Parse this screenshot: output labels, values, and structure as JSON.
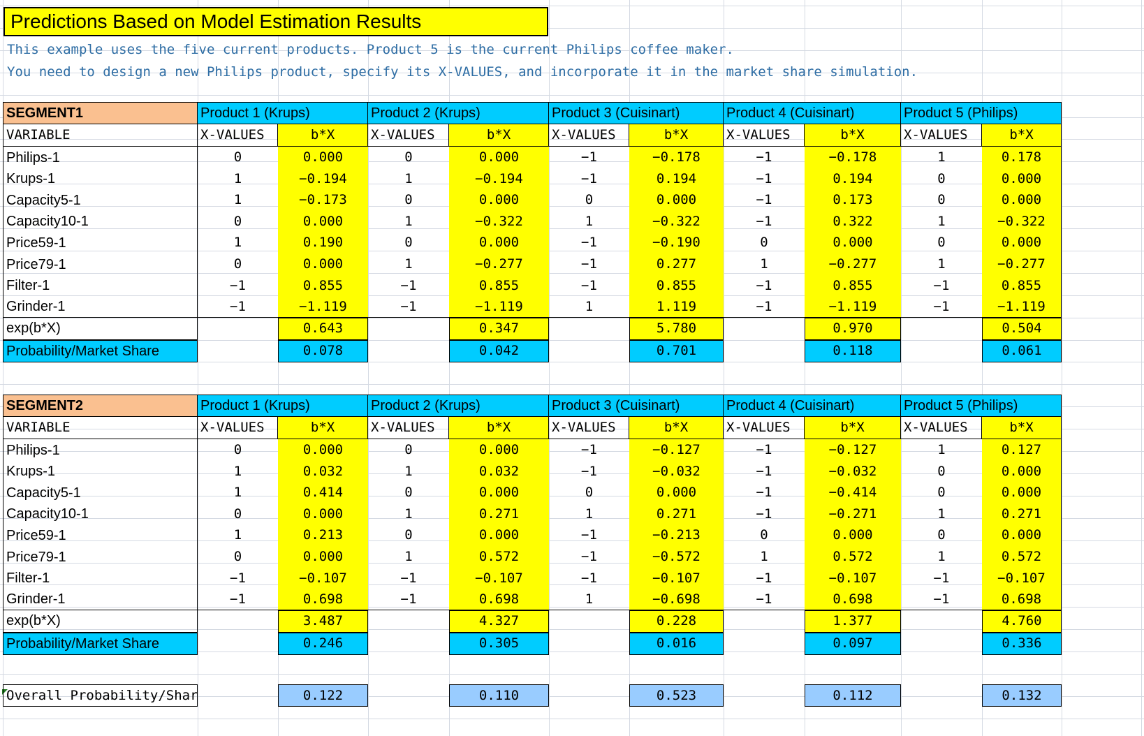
{
  "title": "Predictions Based on Model Estimation Results",
  "notes": [
    "This example uses the five current products. Product 5 is the current Philips coffee maker.",
    "You need to design a new Philips product, specify its X-VALUES, and incorporate it in the market share simulation."
  ],
  "products": [
    "Product 1 (Krups)",
    "Product 2 (Krups)",
    "Product 3 (Cuisinart)",
    "Product 4 (Cuisinart)",
    "Product 5 (Philips)"
  ],
  "col_headers": {
    "variable": "VARIABLE",
    "xvalues": "X-VALUES",
    "bx": "b*X"
  },
  "row_labels": {
    "exp": "exp(b*X)",
    "prob": "Probability/Market Share",
    "overall": "Overall Probability/Share"
  },
  "variables": [
    "Philips-1",
    "Krups-1",
    "Capacity5-1",
    "Capacity10-1",
    "Price59-1",
    "Price79-1",
    "Filter-1",
    "Grinder-1"
  ],
  "segments": [
    {
      "name": "SEGMENT1",
      "rows": [
        [
          [
            "0",
            "0.000"
          ],
          [
            "0",
            "0.000"
          ],
          [
            "−1",
            "−0.178"
          ],
          [
            "−1",
            "−0.178"
          ],
          [
            "1",
            "0.178"
          ]
        ],
        [
          [
            "1",
            "−0.194"
          ],
          [
            "1",
            "−0.194"
          ],
          [
            "−1",
            "0.194"
          ],
          [
            "−1",
            "0.194"
          ],
          [
            "0",
            "0.000"
          ]
        ],
        [
          [
            "1",
            "−0.173"
          ],
          [
            "0",
            "0.000"
          ],
          [
            "0",
            "0.000"
          ],
          [
            "−1",
            "0.173"
          ],
          [
            "0",
            "0.000"
          ]
        ],
        [
          [
            "0",
            "0.000"
          ],
          [
            "1",
            "−0.322"
          ],
          [
            "1",
            "−0.322"
          ],
          [
            "−1",
            "0.322"
          ],
          [
            "1",
            "−0.322"
          ]
        ],
        [
          [
            "1",
            "0.190"
          ],
          [
            "0",
            "0.000"
          ],
          [
            "−1",
            "−0.190"
          ],
          [
            "0",
            "0.000"
          ],
          [
            "0",
            "0.000"
          ]
        ],
        [
          [
            "0",
            "0.000"
          ],
          [
            "1",
            "−0.277"
          ],
          [
            "−1",
            "0.277"
          ],
          [
            "1",
            "−0.277"
          ],
          [
            "1",
            "−0.277"
          ]
        ],
        [
          [
            "−1",
            "0.855"
          ],
          [
            "−1",
            "0.855"
          ],
          [
            "−1",
            "0.855"
          ],
          [
            "−1",
            "0.855"
          ],
          [
            "−1",
            "0.855"
          ]
        ],
        [
          [
            "−1",
            "−1.119"
          ],
          [
            "−1",
            "−1.119"
          ],
          [
            "1",
            "1.119"
          ],
          [
            "−1",
            "−1.119"
          ],
          [
            "−1",
            "−1.119"
          ]
        ]
      ],
      "exp": [
        "0.643",
        "0.347",
        "5.780",
        "0.970",
        "0.504"
      ],
      "prob": [
        "0.078",
        "0.042",
        "0.701",
        "0.118",
        "0.061"
      ]
    },
    {
      "name": "SEGMENT2",
      "rows": [
        [
          [
            "0",
            "0.000"
          ],
          [
            "0",
            "0.000"
          ],
          [
            "−1",
            "−0.127"
          ],
          [
            "−1",
            "−0.127"
          ],
          [
            "1",
            "0.127"
          ]
        ],
        [
          [
            "1",
            "0.032"
          ],
          [
            "1",
            "0.032"
          ],
          [
            "−1",
            "−0.032"
          ],
          [
            "−1",
            "−0.032"
          ],
          [
            "0",
            "0.000"
          ]
        ],
        [
          [
            "1",
            "0.414"
          ],
          [
            "0",
            "0.000"
          ],
          [
            "0",
            "0.000"
          ],
          [
            "−1",
            "−0.414"
          ],
          [
            "0",
            "0.000"
          ]
        ],
        [
          [
            "0",
            "0.000"
          ],
          [
            "1",
            "0.271"
          ],
          [
            "1",
            "0.271"
          ],
          [
            "−1",
            "−0.271"
          ],
          [
            "1",
            "0.271"
          ]
        ],
        [
          [
            "1",
            "0.213"
          ],
          [
            "0",
            "0.000"
          ],
          [
            "−1",
            "−0.213"
          ],
          [
            "0",
            "0.000"
          ],
          [
            "0",
            "0.000"
          ]
        ],
        [
          [
            "0",
            "0.000"
          ],
          [
            "1",
            "0.572"
          ],
          [
            "−1",
            "−0.572"
          ],
          [
            "1",
            "0.572"
          ],
          [
            "1",
            "0.572"
          ]
        ],
        [
          [
            "−1",
            "−0.107"
          ],
          [
            "−1",
            "−0.107"
          ],
          [
            "−1",
            "−0.107"
          ],
          [
            "−1",
            "−0.107"
          ],
          [
            "−1",
            "−0.107"
          ]
        ],
        [
          [
            "−1",
            "0.698"
          ],
          [
            "−1",
            "0.698"
          ],
          [
            "1",
            "−0.698"
          ],
          [
            "−1",
            "0.698"
          ],
          [
            "−1",
            "0.698"
          ]
        ]
      ],
      "exp": [
        "3.487",
        "4.327",
        "0.228",
        "1.377",
        "4.760"
      ],
      "prob": [
        "0.246",
        "0.305",
        "0.016",
        "0.097",
        "0.336"
      ]
    }
  ],
  "overall": [
    "0.122",
    "0.110",
    "0.523",
    "0.112",
    "0.132"
  ],
  "colors": {
    "yellow": "#ffff00",
    "cyan": "#00ccff",
    "peach": "#fac090",
    "light_blue": "#99ccff",
    "note_text": "#2e6da4"
  }
}
